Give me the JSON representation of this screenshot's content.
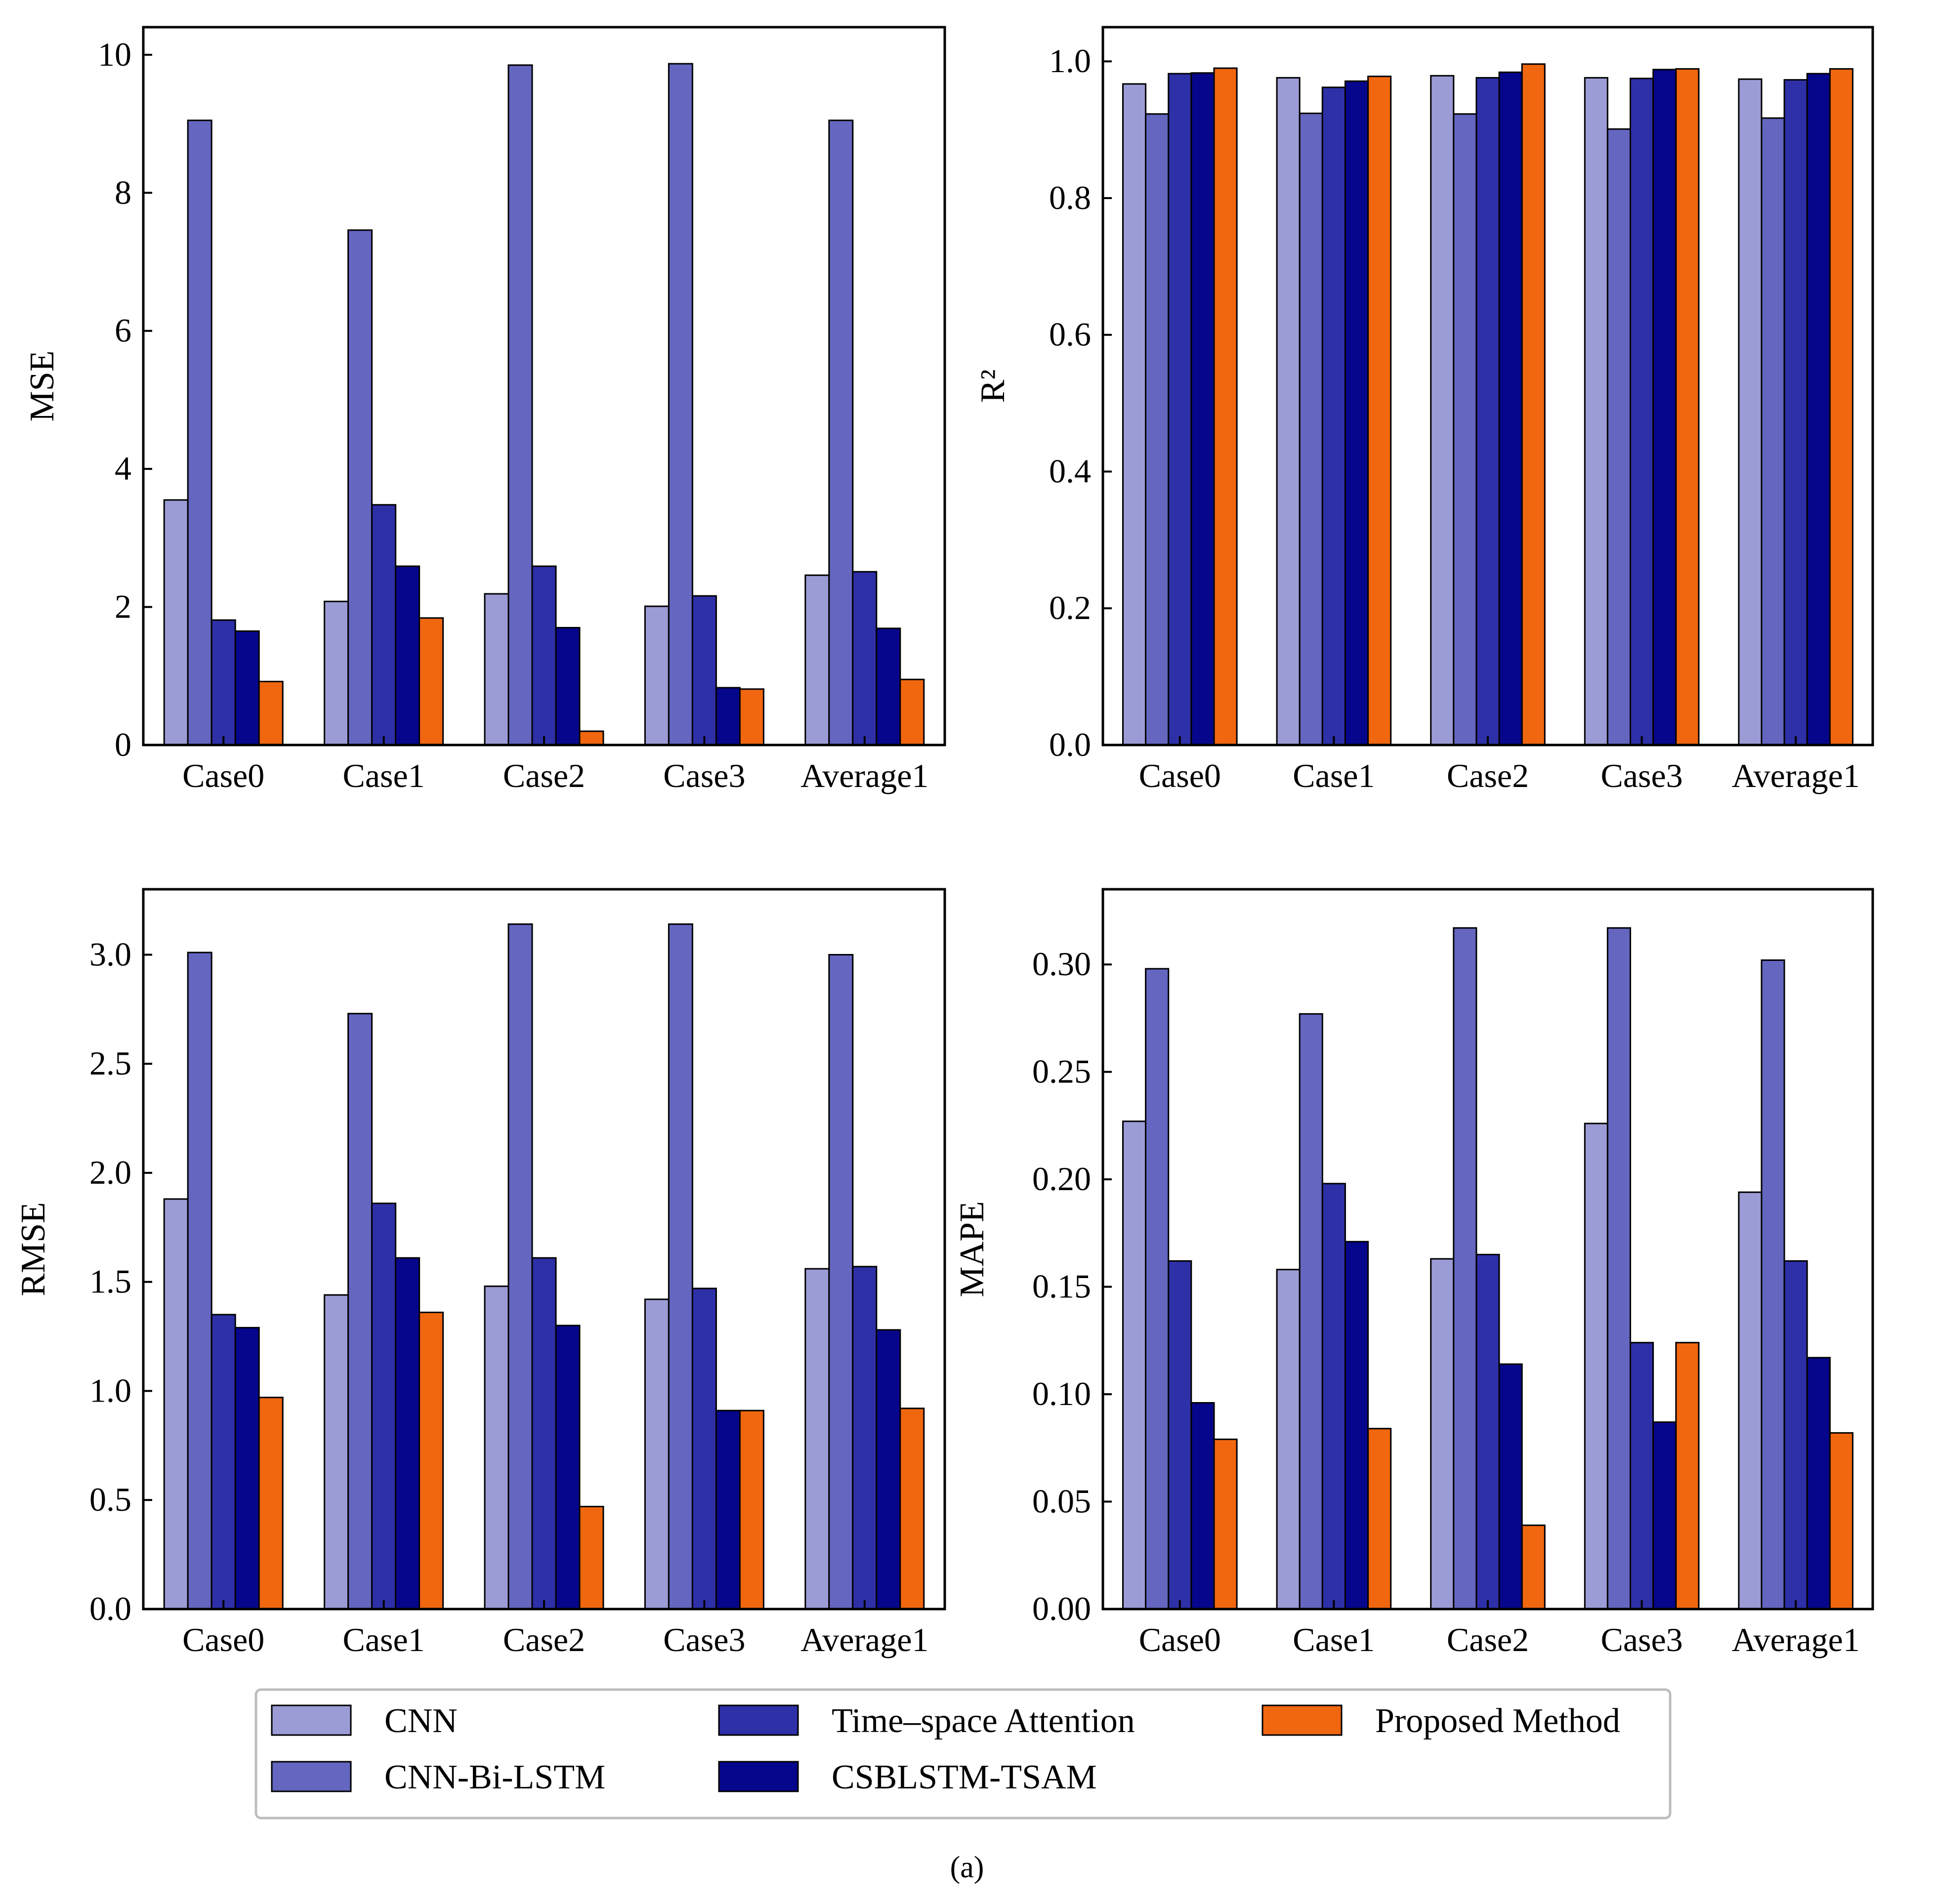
{
  "series_names": [
    "CNN",
    "CNN-Bi-LSTM",
    "Time–space Attention",
    "CSBLSTM-TSAM",
    "Proposed Method"
  ],
  "series_colors": [
    "#9b9bd6",
    "#6466c0",
    "#2e30a8",
    "#06068c",
    "#f0670f"
  ],
  "caption": "(a)",
  "chart_data": [
    {
      "type": "bar",
      "ylabel": "MSE",
      "categories": [
        "Case0",
        "Case1",
        "Case2",
        "Case3",
        "Average1"
      ],
      "ylim": [
        0,
        10.4
      ],
      "yticks": [
        0,
        2,
        4,
        6,
        8,
        10
      ],
      "ytick_labels": [
        "0",
        "2",
        "4",
        "6",
        "8",
        "10"
      ],
      "series": [
        {
          "name": "CNN",
          "values": [
            3.55,
            2.08,
            2.19,
            2.01,
            2.46
          ]
        },
        {
          "name": "CNN-Bi-LSTM",
          "values": [
            9.05,
            7.46,
            9.85,
            9.87,
            9.05
          ]
        },
        {
          "name": "Time–space Attention",
          "values": [
            1.81,
            3.48,
            2.59,
            2.16,
            2.51
          ]
        },
        {
          "name": "CSBLSTM-TSAM",
          "values": [
            1.65,
            2.59,
            1.7,
            0.83,
            1.69
          ]
        },
        {
          "name": "Proposed Method",
          "values": [
            0.92,
            1.84,
            0.2,
            0.81,
            0.95
          ]
        }
      ]
    },
    {
      "type": "bar",
      "ylabel": "R²",
      "categories": [
        "Case0",
        "Case1",
        "Case2",
        "Case3",
        "Average1"
      ],
      "ylim": [
        0,
        1.05
      ],
      "yticks": [
        0,
        0.2,
        0.4,
        0.6,
        0.8,
        1.0
      ],
      "ytick_labels": [
        "0.0",
        "0.2",
        "0.4",
        "0.6",
        "0.8",
        "1.0"
      ],
      "series": [
        {
          "name": "CNN",
          "values": [
            0.967,
            0.976,
            0.979,
            0.976,
            0.974
          ]
        },
        {
          "name": "CNN-Bi-LSTM",
          "values": [
            0.923,
            0.924,
            0.923,
            0.901,
            0.917
          ]
        },
        {
          "name": "Time–space Attention",
          "values": [
            0.982,
            0.962,
            0.976,
            0.975,
            0.973
          ]
        },
        {
          "name": "CSBLSTM-TSAM",
          "values": [
            0.983,
            0.971,
            0.984,
            0.988,
            0.982
          ]
        },
        {
          "name": "Proposed Method",
          "values": [
            0.99,
            0.978,
            0.996,
            0.989,
            0.989
          ]
        }
      ]
    },
    {
      "type": "bar",
      "ylabel": "RMSE",
      "categories": [
        "Case0",
        "Case1",
        "Case2",
        "Case3",
        "Average1"
      ],
      "ylim": [
        0,
        3.3
      ],
      "yticks": [
        0,
        0.5,
        1.0,
        1.5,
        2.0,
        2.5,
        3.0
      ],
      "ytick_labels": [
        "0.0",
        "0.5",
        "1.0",
        "1.5",
        "2.0",
        "2.5",
        "3.0"
      ],
      "series": [
        {
          "name": "CNN",
          "values": [
            1.88,
            1.44,
            1.48,
            1.42,
            1.56
          ]
        },
        {
          "name": "CNN-Bi-LSTM",
          "values": [
            3.01,
            2.73,
            3.14,
            3.14,
            3.0
          ]
        },
        {
          "name": "Time–space Attention",
          "values": [
            1.35,
            1.86,
            1.61,
            1.47,
            1.57
          ]
        },
        {
          "name": "CSBLSTM-TSAM",
          "values": [
            1.29,
            1.61,
            1.3,
            0.91,
            1.28
          ]
        },
        {
          "name": "Proposed Method",
          "values": [
            0.97,
            1.36,
            0.47,
            0.91,
            0.92
          ]
        }
      ]
    },
    {
      "type": "bar",
      "ylabel": "MAPE",
      "categories": [
        "Case0",
        "Case1",
        "Case2",
        "Case3",
        "Average1"
      ],
      "ylim": [
        0,
        0.335
      ],
      "yticks": [
        0,
        0.05,
        0.1,
        0.15,
        0.2,
        0.25,
        0.3
      ],
      "ytick_labels": [
        "0.00",
        "0.05",
        "0.10",
        "0.15",
        "0.20",
        "0.25",
        "0.30"
      ],
      "series": [
        {
          "name": "CNN",
          "values": [
            0.227,
            0.158,
            0.163,
            0.226,
            0.194
          ]
        },
        {
          "name": "CNN-Bi-LSTM",
          "values": [
            0.298,
            0.277,
            0.317,
            0.317,
            0.302
          ]
        },
        {
          "name": "Time–space Attention",
          "values": [
            0.162,
            0.198,
            0.165,
            0.124,
            0.162
          ]
        },
        {
          "name": "CSBLSTM-TSAM",
          "values": [
            0.096,
            0.171,
            0.114,
            0.087,
            0.117
          ]
        },
        {
          "name": "Proposed Method",
          "values": [
            0.079,
            0.084,
            0.039,
            0.124,
            0.082
          ]
        }
      ]
    }
  ]
}
